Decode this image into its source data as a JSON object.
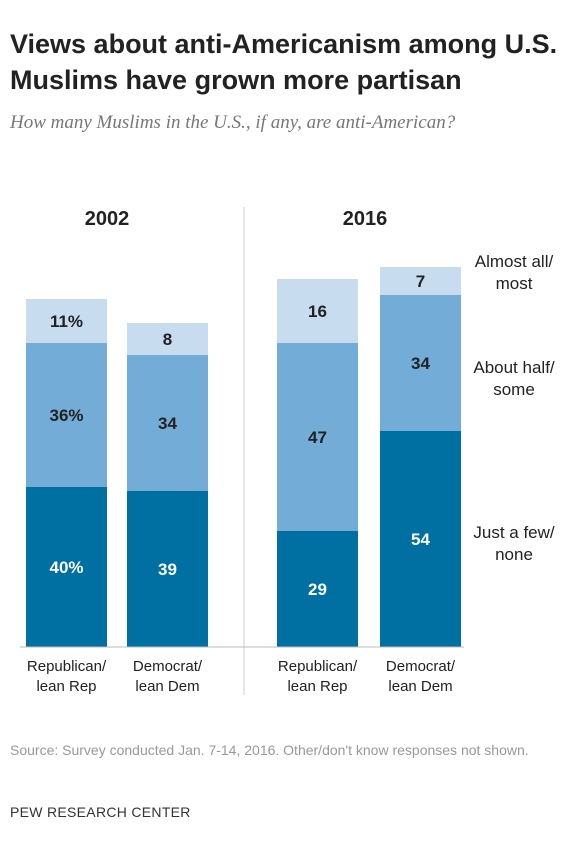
{
  "title": "Views about anti-Americanism among U.S. Muslims have grown more partisan",
  "subtitle": "How many Muslims in the U.S., if any, are anti-American?",
  "source": "Source: Survey conducted Jan. 7-14, 2016. Other/don't know responses not shown.",
  "org": "PEW RESEARCH CENTER",
  "colors": {
    "just_a_few_none": "#006fa1",
    "about_half_some": "#73acd6",
    "almost_all_most": "#c7dcef",
    "label_dark": "#222222",
    "label_light": "#ffffff"
  },
  "chart_data": {
    "type": "bar",
    "stacked": true,
    "ylim": [
      0,
      100
    ],
    "legend_placement": "right",
    "panels": [
      {
        "title": "2002",
        "categories": [
          {
            "label": [
              "Republican/",
              "lean Rep"
            ],
            "values": [
              40,
              36,
              11
            ],
            "value_labels": [
              "40%",
              "36%",
              "11%"
            ]
          },
          {
            "label": [
              "Democrat/",
              "lean Dem"
            ],
            "values": [
              39,
              34,
              8
            ],
            "value_labels": [
              "39",
              "34",
              "8"
            ]
          }
        ]
      },
      {
        "title": "2016",
        "categories": [
          {
            "label": [
              "Republican/",
              "lean Rep"
            ],
            "values": [
              29,
              47,
              16
            ],
            "value_labels": [
              "29",
              "47",
              "16"
            ]
          },
          {
            "label": [
              "Democrat/",
              "lean Dem"
            ],
            "values": [
              54,
              34,
              7
            ],
            "value_labels": [
              "54",
              "34",
              "7"
            ]
          }
        ]
      }
    ],
    "series": [
      {
        "name": [
          "Just a few/",
          "none"
        ]
      },
      {
        "name": [
          "About half/",
          "some"
        ]
      },
      {
        "name": [
          "Almost all/",
          "most"
        ]
      }
    ]
  }
}
